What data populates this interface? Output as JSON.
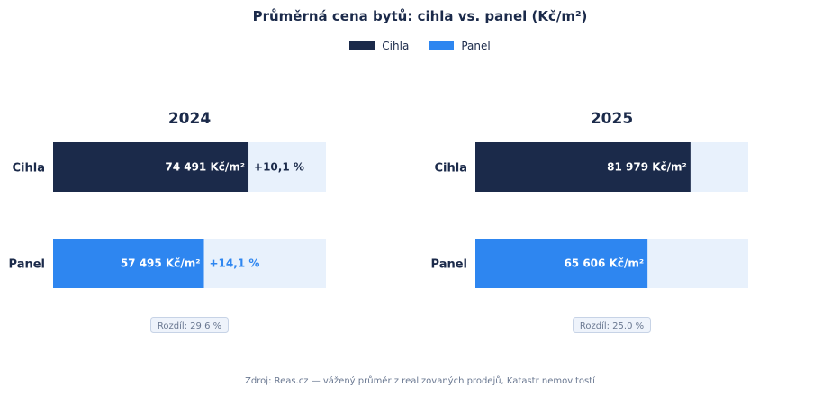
{
  "title": "Průměrná cena bytů: cihla vs. panel (Kč/m²)",
  "legend": [
    {
      "label": "Cihla",
      "color": "#1b2a4a"
    },
    {
      "label": "Panel",
      "color": "#2e86f0"
    }
  ],
  "source": "Zdroj: Reas.cz — vážený průměr z realizovaných prodejů, Katastr nemovitostí",
  "colors": {
    "cihla": "#1b2a4a",
    "panel": "#2e86f0",
    "track": "#e8f1fc",
    "growth": "#2e86f0"
  },
  "chart_data": [
    {
      "type": "bar",
      "title": "2024",
      "categories": [
        "Cihla",
        "Panel"
      ],
      "values": [
        74491,
        57495
      ],
      "value_labels": [
        "74 491 Kč/m²",
        "57 495 Kč/m²"
      ],
      "growth_labels": [
        "+10,1 %",
        "+14,1 %"
      ],
      "difference_label": "Rozdíl: 29.6 %",
      "xlim": [
        0,
        104000
      ]
    },
    {
      "type": "bar",
      "title": "2025",
      "categories": [
        "Cihla",
        "Panel"
      ],
      "values": [
        81979,
        65606
      ],
      "value_labels": [
        "81 979 Kč/m²",
        "65 606 Kč/m²"
      ],
      "growth_labels": [
        "",
        ""
      ],
      "difference_label": "Rozdíl: 25.0 %",
      "xlim": [
        0,
        104000
      ]
    }
  ]
}
